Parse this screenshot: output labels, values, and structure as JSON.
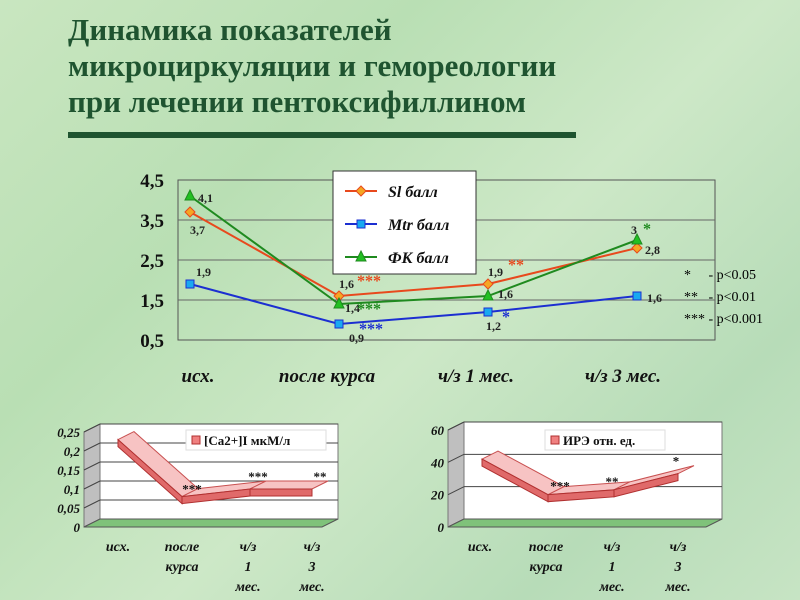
{
  "title_lines": [
    "Динамика показателей",
    "микроциркуляции и гемореологии",
    "при лечении пентоксифиллином"
  ],
  "significance": [
    "*     - p<0.05",
    "**   - p<0.01",
    "*** - p<0.001"
  ],
  "chart_data": [
    {
      "type": "line",
      "categories": [
        "исх.",
        "после курса",
        "ч/з 1 мес.",
        "ч/з 3 мес."
      ],
      "ylim": [
        0.5,
        4.5
      ],
      "yticks": [
        "0,5",
        "1,5",
        "2,5",
        "3,5",
        "4,5"
      ],
      "series": [
        {
          "name": "Sl балл",
          "values": [
            3.7,
            1.6,
            1.9,
            2.8
          ],
          "labels": [
            "3,7",
            "1,6",
            "1,9",
            "2,8"
          ],
          "stars": [
            "",
            "***",
            "**",
            ""
          ],
          "color": "#e8491d",
          "marker": "diamond",
          "markerColor": "#f5a623"
        },
        {
          "name": "Mtr балл",
          "values": [
            1.9,
            0.9,
            1.2,
            1.6
          ],
          "labels": [
            "1,9",
            "0,9",
            "1,2",
            "1,6"
          ],
          "stars": [
            "",
            "***",
            "*",
            ""
          ],
          "color": "#1c2fd1",
          "marker": "square",
          "markerColor": "#19a9f0"
        },
        {
          "name": "ФК балл",
          "values": [
            4.1,
            1.4,
            1.6,
            3.0
          ],
          "labels": [
            "4,1",
            "1,4",
            "1,6",
            "3"
          ],
          "stars": [
            "",
            "***",
            "",
            "*"
          ],
          "color": "#1f8a1f",
          "marker": "triangle",
          "markerColor": "#22c022"
        }
      ]
    },
    {
      "type": "area",
      "categories": [
        "исх.",
        "после курса",
        "ч/з 1 мес.",
        "ч/з 3 мес."
      ],
      "ylim": [
        0,
        0.25
      ],
      "yticks": [
        "0",
        "0,05",
        "0,1",
        "0,15",
        "0,2",
        "0,25"
      ],
      "series": [
        {
          "name": "[Ca2+]I мкМ/л",
          "values": [
            0.23,
            0.08,
            0.1,
            0.1
          ],
          "stars": [
            "",
            "***",
            "***",
            "**"
          ]
        }
      ]
    },
    {
      "type": "area",
      "categories": [
        "исх.",
        "после курса",
        "ч/з 1 мес.",
        "ч/з 3 мес."
      ],
      "ylim": [
        0,
        60
      ],
      "yticks": [
        "0",
        "20",
        "40",
        "60"
      ],
      "series": [
        {
          "name": "ИРЭ отн. ед.",
          "values": [
            42,
            20,
            23,
            33
          ],
          "stars": [
            "",
            "***",
            "**",
            "*"
          ]
        }
      ]
    }
  ]
}
